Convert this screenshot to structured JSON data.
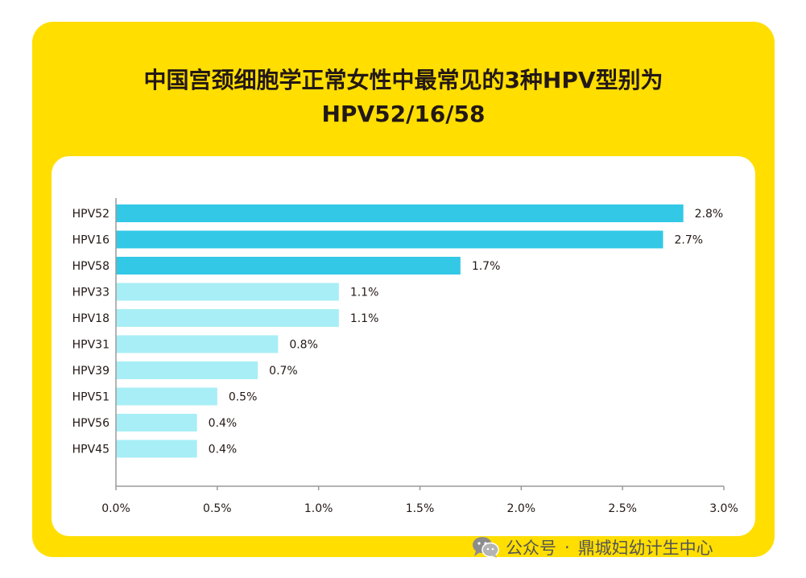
{
  "title": {
    "line1": "中国宫颈细胞学正常女性中最常见的3种HPV型别为",
    "line2": "HPV52/16/58"
  },
  "watermark": {
    "prefix": "公众号",
    "separator": "·",
    "name": "鼎城妇幼计生中心",
    "icon": "wechat-icon"
  },
  "colors": {
    "card_background": "#FFDE00",
    "highlight_bar": "#33C8E6",
    "normal_bar": "#A8EEF6"
  },
  "chart_data": {
    "type": "bar",
    "orientation": "horizontal",
    "categories": [
      "HPV52",
      "HPV16",
      "HPV58",
      "HPV33",
      "HPV18",
      "HPV31",
      "HPV39",
      "HPV51",
      "HPV56",
      "HPV45"
    ],
    "values": [
      2.8,
      2.7,
      1.7,
      1.1,
      1.1,
      0.8,
      0.7,
      0.5,
      0.4,
      0.4
    ],
    "value_labels": [
      "2.8%",
      "2.7%",
      "1.7%",
      "1.1%",
      "1.1%",
      "0.8%",
      "0.7%",
      "0.5%",
      "0.4%",
      "0.4%"
    ],
    "highlighted": [
      true,
      true,
      true,
      false,
      false,
      false,
      false,
      false,
      false,
      false
    ],
    "xlim": [
      0,
      3.0
    ],
    "xticks": [
      0,
      0.5,
      1.0,
      1.5,
      2.0,
      2.5,
      3.0
    ],
    "xtick_labels": [
      "0.0%",
      "0.5%",
      "1.0%",
      "1.5%",
      "2.0%",
      "2.5%",
      "3.0%"
    ],
    "grid": false,
    "legend": "none"
  }
}
